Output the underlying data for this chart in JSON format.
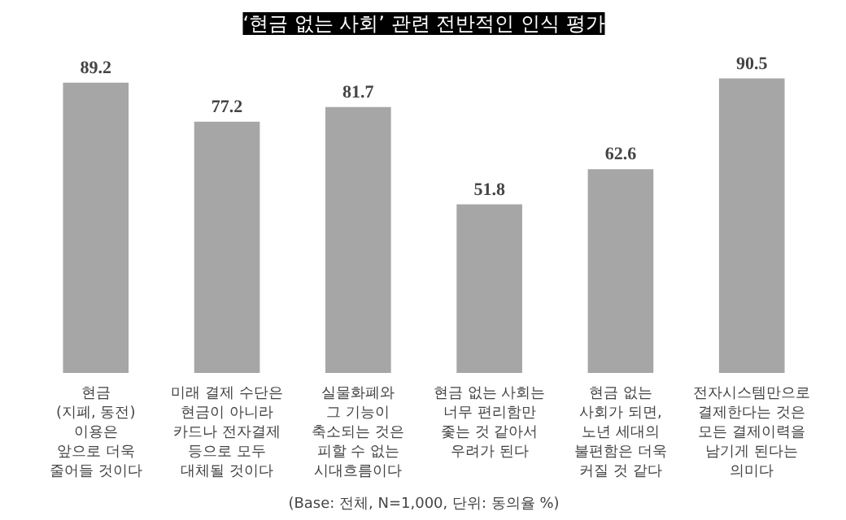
{
  "chart_data": {
    "type": "bar",
    "title": "‘현금 없는 사회’ 관련 전반적인 인식 평가",
    "categories": [
      "현금\n(지폐, 동전)\n이용은\n앞으로 더욱\n줄어들 것이다",
      "미래 결제 수단은\n현금이 아니라\n카드나 전자결제\n등으로 모두\n대체될 것이다",
      "실물화폐와\n그 기능이\n축소되는 것은\n피할 수 없는\n시대흐름이다",
      "현금 없는 사회는\n너무 편리함만\n좇는 것 같아서\n우려가 된다",
      "현금 없는\n사회가 되면,\n노년 세대의\n불편함은 더욱\n커질 것 같다",
      "전자시스템만으로\n결제한다는 것은\n모든 결제이력을\n남기게 된다는\n의미다"
    ],
    "values": [
      89.2,
      77.2,
      81.7,
      51.8,
      62.6,
      90.5
    ],
    "color": "#a6a6a6",
    "data_labels": true,
    "annotations": [
      "(Base: 전체, N=1,000, 단위: 동의율 %)"
    ]
  }
}
